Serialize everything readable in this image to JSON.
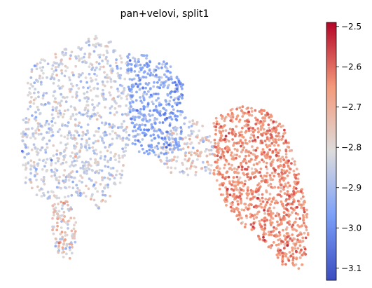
{
  "chart_data": {
    "type": "scatter",
    "title": "pan+velovi, split1",
    "xlabel": "",
    "ylabel": "",
    "axes_visible": false,
    "grid": false,
    "colormap": "coolwarm",
    "colorbar": {
      "location": "right",
      "range": [
        -3.13,
        -2.49
      ],
      "ticks": [
        -2.5,
        -2.6,
        -2.7,
        -2.8,
        -2.9,
        -3.0,
        -3.1
      ],
      "tick_labels": [
        "−2.5",
        "−2.6",
        "−2.7",
        "−2.8",
        "−2.9",
        "−3.0",
        "−3.1"
      ]
    },
    "clusters": [
      {
        "region": "left-lobe",
        "count": 900,
        "color_value_mean": -2.83
      },
      {
        "region": "center-top",
        "count": 450,
        "color_value_mean": -2.93
      },
      {
        "region": "center-bridge",
        "count": 180,
        "color_value_mean": -2.8
      },
      {
        "region": "right-lobe",
        "count": 1100,
        "color_value_mean": -2.66
      },
      {
        "region": "bottom-left-islands",
        "count": 120,
        "color_value_mean": -2.78
      }
    ]
  }
}
